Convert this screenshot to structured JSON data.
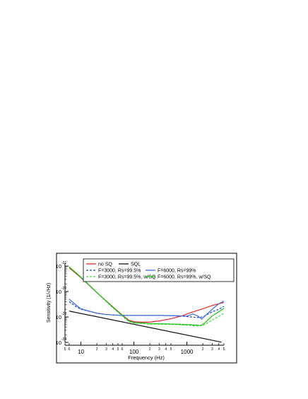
{
  "chart_data": {
    "type": "line",
    "xlabel": "Frequency (Hz)",
    "ylabel": "Sensitivity (1/√Hz)",
    "x_scale": "log",
    "y_scale": "log",
    "xlim": [
      5,
      5000
    ],
    "ylim": [
      1e-24,
      1.3e-21
    ],
    "x_major_ticks": [
      {
        "value": 10,
        "label": "10"
      },
      {
        "value": 100,
        "label": "100"
      },
      {
        "value": 1000,
        "label": "1000"
      }
    ],
    "x_minor_ticks": [
      {
        "value": 5,
        "label": "5"
      },
      {
        "value": 6,
        "label": "6"
      },
      {
        "value": 20,
        "label": "2"
      },
      {
        "value": 30,
        "label": "3"
      },
      {
        "value": 40,
        "label": "4"
      },
      {
        "value": 50,
        "label": "5"
      },
      {
        "value": 60,
        "label": "6"
      },
      {
        "value": 200,
        "label": "2"
      },
      {
        "value": 300,
        "label": "3"
      },
      {
        "value": 400,
        "label": "4"
      },
      {
        "value": 500,
        "label": "5"
      },
      {
        "value": 2000,
        "label": "2"
      },
      {
        "value": 3000,
        "label": "3"
      },
      {
        "value": 4000,
        "label": "4"
      },
      {
        "value": 5000,
        "label": "5"
      }
    ],
    "y_major_ticks": [
      {
        "value": 1e-24,
        "base": "10",
        "exp": "-24"
      },
      {
        "value": 1e-23,
        "base": "10",
        "exp": "-23"
      },
      {
        "value": 1e-22,
        "base": "10",
        "exp": "-22"
      },
      {
        "value": 1e-21,
        "base": "10",
        "exp": "-21"
      }
    ],
    "grid": false,
    "legend_position": "top",
    "series": [
      {
        "name": "no SQ",
        "color": "#e8262b",
        "dash": "solid",
        "points": [
          [
            6,
            8.5e-22
          ],
          [
            10,
            3.5e-22
          ],
          [
            20,
            9e-23
          ],
          [
            40,
            2.5e-23
          ],
          [
            60,
            1.2e-23
          ],
          [
            80,
            7.5e-24
          ],
          [
            100,
            6.5e-24
          ],
          [
            150,
            6.2e-24
          ],
          [
            200,
            6.3e-24
          ],
          [
            300,
            7e-24
          ],
          [
            500,
            8.5e-24
          ],
          [
            800,
            1.1e-23
          ],
          [
            1200,
            1.5e-23
          ],
          [
            2000,
            2.1e-23
          ],
          [
            3000,
            2.8e-23
          ],
          [
            4000,
            3.3e-23
          ],
          [
            5000,
            3.7e-23
          ]
        ]
      },
      {
        "name": "SQL",
        "color": "#111111",
        "dash": "solid",
        "points": [
          [
            6,
            1.7e-23
          ],
          [
            4500,
            1.02e-24
          ]
        ]
      },
      {
        "name": "F=3000, Rs=99.5%",
        "color": "#1a3fd6",
        "dash": "dashed",
        "points": [
          [
            6,
            4e-23
          ],
          [
            8,
            2.6e-23
          ],
          [
            10,
            2e-23
          ],
          [
            20,
            1.4e-23
          ],
          [
            30,
            1.25e-23
          ],
          [
            40,
            1.2e-23
          ],
          [
            60,
            1.15e-23
          ],
          [
            100,
            1.15e-23
          ],
          [
            300,
            1.15e-23
          ],
          [
            500,
            1.12e-23
          ],
          [
            800,
            1.08e-23
          ],
          [
            1200,
            1e-23
          ],
          [
            1600,
            9.5e-24
          ],
          [
            2000,
            1e-23
          ],
          [
            2500,
            1.3e-23
          ],
          [
            3000,
            1.6e-23
          ],
          [
            4000,
            2e-23
          ],
          [
            5000,
            2.6e-23
          ]
        ]
      },
      {
        "name": "F=6000, Rs=99%",
        "color": "#3f6ae0",
        "dash": "solid",
        "points": [
          [
            6,
            5e-23
          ],
          [
            8,
            3e-23
          ],
          [
            10,
            2.1e-23
          ],
          [
            20,
            1.4e-23
          ],
          [
            30,
            1.25e-23
          ],
          [
            40,
            1.2e-23
          ],
          [
            60,
            1.15e-23
          ],
          [
            100,
            1.15e-23
          ],
          [
            300,
            1.15e-23
          ],
          [
            500,
            1.13e-23
          ],
          [
            800,
            1.1e-23
          ],
          [
            1000,
            1.08e-23
          ],
          [
            1300,
            1.3e-23
          ],
          [
            1600,
            1.1e-23
          ],
          [
            1900,
            8.2e-24
          ],
          [
            2200,
            1.1e-23
          ],
          [
            3000,
            2e-23
          ],
          [
            4000,
            3.3e-23
          ],
          [
            5000,
            4.2e-23
          ]
        ]
      },
      {
        "name": "F=3000, Rs=99.5%, w/SQ",
        "color": "#3ad63a",
        "dash": "dashed",
        "points": [
          [
            6,
            9e-22
          ],
          [
            10,
            3.6e-22
          ],
          [
            20,
            9e-23
          ],
          [
            40,
            2.3e-23
          ],
          [
            60,
            1.1e-23
          ],
          [
            80,
            6.6e-24
          ],
          [
            100,
            5.8e-24
          ],
          [
            200,
            5.3e-24
          ],
          [
            500,
            5.1e-24
          ],
          [
            1000,
            4.8e-24
          ],
          [
            1500,
            4.4e-24
          ],
          [
            2000,
            4.6e-24
          ],
          [
            3000,
            7.5e-24
          ],
          [
            4000,
            1.05e-23
          ],
          [
            5000,
            1.4e-23
          ]
        ]
      },
      {
        "name": "F=6000, Rs=99%, w/SQ",
        "color": "#1fbf1f",
        "dash": "solid",
        "points": [
          [
            6,
            9.4e-22
          ],
          [
            10,
            3.7e-22
          ],
          [
            20,
            9.2e-23
          ],
          [
            40,
            2.4e-23
          ],
          [
            60,
            1.15e-23
          ],
          [
            80,
            7e-24
          ],
          [
            100,
            6e-24
          ],
          [
            200,
            5.5e-24
          ],
          [
            500,
            5.3e-24
          ],
          [
            1000,
            5e-24
          ],
          [
            1500,
            4.8e-24
          ],
          [
            1800,
            4.6e-24
          ],
          [
            2100,
            5.5e-24
          ],
          [
            3000,
            1.1e-23
          ],
          [
            4000,
            1.6e-23
          ],
          [
            5000,
            2.2e-23
          ]
        ]
      }
    ]
  }
}
